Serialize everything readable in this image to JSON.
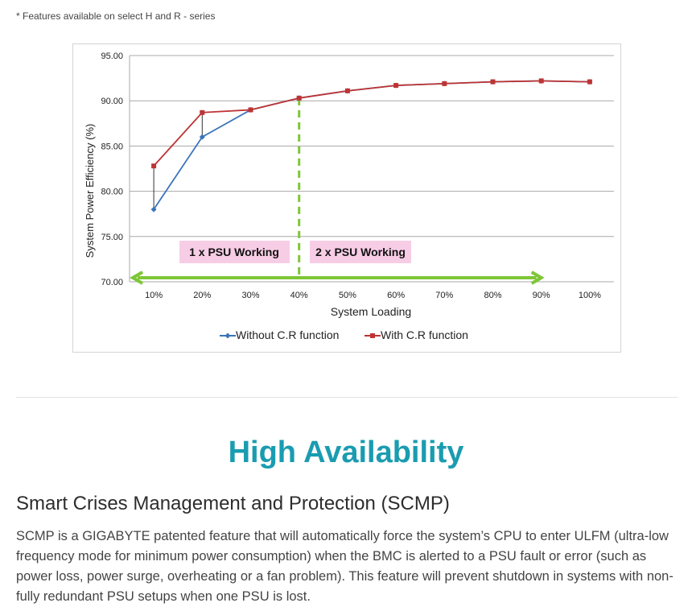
{
  "footnote": "* Features available on select H and R - series",
  "chart_data": {
    "type": "line",
    "ylabel": "System Power Efficiency (%)",
    "xlabel": "System Loading",
    "categories": [
      "10%",
      "20%",
      "30%",
      "40%",
      "50%",
      "60%",
      "70%",
      "80%",
      "90%",
      "100%"
    ],
    "ylim": [
      70,
      95
    ],
    "yticks": [
      "70.00",
      "75.00",
      "80.00",
      "85.00",
      "90.00",
      "95.00"
    ],
    "grid": true,
    "legend_position": "bottom",
    "series": [
      {
        "name": "Without C.R function",
        "color": "#3a74b8",
        "marker": "diamond",
        "values": [
          78.0,
          86.0,
          89.0,
          90.3,
          91.1,
          91.7,
          91.9,
          92.1,
          92.2,
          92.1
        ]
      },
      {
        "name": "With C.R function",
        "color": "#be3434",
        "marker": "square",
        "values": [
          82.8,
          88.7,
          89.0,
          90.3,
          91.1,
          91.7,
          91.9,
          92.1,
          92.2,
          92.1
        ]
      }
    ],
    "annotations": {
      "region_left_label": "1 x PSU Working",
      "region_right_label": "2 x PSU Working",
      "divider_at": "40%",
      "arrow_from": "10%",
      "arrow_to": "90%",
      "arrow_color": "#7ec636",
      "label_bg": "#f7cde6"
    }
  },
  "section": {
    "title": "High Availability",
    "subtitle": "Smart Crises Management and Protection (SCMP)",
    "paragraph": "SCMP is a GIGABYTE patented feature that will automatically force the system’s CPU to enter ULFM (ultra-low frequency mode for minimum power consumption) when the BMC is alerted to a PSU fault or error (such as power loss, power surge, overheating or a fan problem). This feature will prevent shutdown in systems with non-fully redundant PSU setups when one PSU is lost."
  }
}
